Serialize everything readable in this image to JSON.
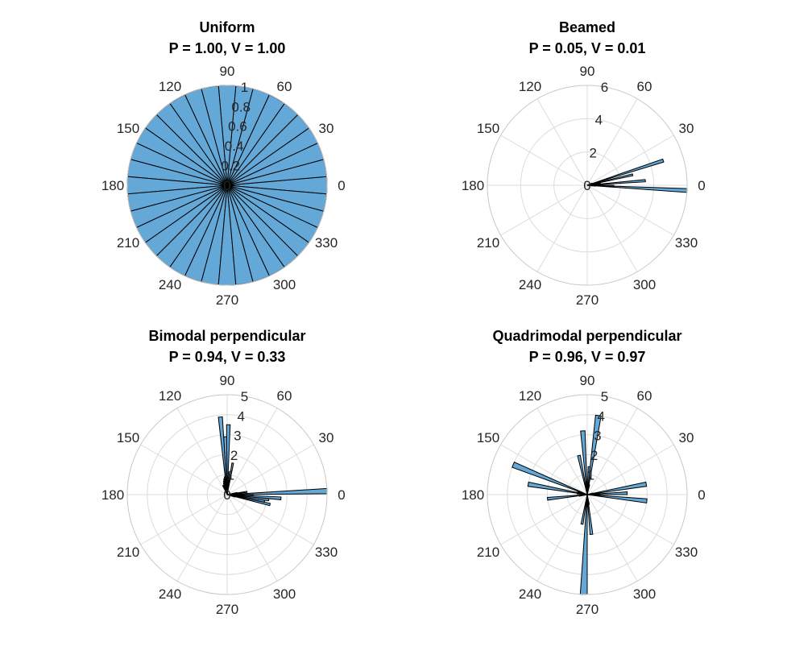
{
  "figure": {
    "panels": [
      {
        "title_line1": "Uniform",
        "title_line2": "P = 1.00, V = 1.00"
      },
      {
        "title_line1": "Beamed",
        "title_line2": "P = 0.05, V = 0.01"
      },
      {
        "title_line1": "Bimodal perpendicular",
        "title_line2": "P = 0.94, V = 0.33"
      },
      {
        "title_line1": "Quadrimodal perpendicular",
        "title_line2": "P = 0.96, V = 0.97"
      }
    ]
  },
  "colors": {
    "bar_fill": "#64a8d8",
    "bar_edge": "#000000",
    "grid": "#dcdcdc",
    "text": "#262626"
  },
  "chart_data": [
    {
      "type": "polar_histogram",
      "title": "Uniform\nP = 1.00, V = 1.00",
      "theta_ticks": [
        "0",
        "30",
        "60",
        "90",
        "120",
        "150",
        "180",
        "210",
        "240",
        "270",
        "300",
        "330"
      ],
      "r_ticks": [
        "0",
        "0.2",
        "0.4",
        "0.6",
        "0.8",
        "1"
      ],
      "rlim": [
        0,
        1
      ],
      "grid": true,
      "bins": "uniform",
      "bars": [
        {
          "theta": 0,
          "r": 1
        },
        {
          "theta": 10,
          "r": 1
        },
        {
          "theta": 20,
          "r": 1
        },
        {
          "theta": 30,
          "r": 1
        },
        {
          "theta": 40,
          "r": 1
        },
        {
          "theta": 50,
          "r": 1
        },
        {
          "theta": 60,
          "r": 1
        },
        {
          "theta": 70,
          "r": 1
        },
        {
          "theta": 80,
          "r": 1
        },
        {
          "theta": 90,
          "r": 1
        },
        {
          "theta": 100,
          "r": 1
        },
        {
          "theta": 110,
          "r": 1
        },
        {
          "theta": 120,
          "r": 1
        },
        {
          "theta": 130,
          "r": 1
        },
        {
          "theta": 140,
          "r": 1
        },
        {
          "theta": 150,
          "r": 1
        },
        {
          "theta": 160,
          "r": 1
        },
        {
          "theta": 170,
          "r": 1
        },
        {
          "theta": 180,
          "r": 1
        },
        {
          "theta": 190,
          "r": 1
        },
        {
          "theta": 200,
          "r": 1
        },
        {
          "theta": 210,
          "r": 1
        },
        {
          "theta": 220,
          "r": 1
        },
        {
          "theta": 230,
          "r": 1
        },
        {
          "theta": 240,
          "r": 1
        },
        {
          "theta": 250,
          "r": 1
        },
        {
          "theta": 260,
          "r": 1
        },
        {
          "theta": 270,
          "r": 1
        },
        {
          "theta": 280,
          "r": 1
        },
        {
          "theta": 290,
          "r": 1
        },
        {
          "theta": 300,
          "r": 1
        },
        {
          "theta": 310,
          "r": 1
        },
        {
          "theta": 320,
          "r": 1
        },
        {
          "theta": 330,
          "r": 1
        },
        {
          "theta": 340,
          "r": 1
        },
        {
          "theta": 350,
          "r": 1
        }
      ]
    },
    {
      "type": "polar_histogram",
      "title": "Beamed\nP = 0.05, V = 0.01",
      "theta_ticks": [
        "0",
        "30",
        "60",
        "90",
        "120",
        "150",
        "180",
        "210",
        "240",
        "270",
        "300",
        "330"
      ],
      "r_ticks": [
        "0",
        "2",
        "4",
        "6"
      ],
      "rlim": [
        0,
        6
      ],
      "grid": true,
      "bars": [
        {
          "theta": -3,
          "r": 6
        },
        {
          "theta": -1,
          "r": 1.6
        },
        {
          "theta": 0.5,
          "r": 0.7
        },
        {
          "theta": 1.5,
          "r": 0.5
        },
        {
          "theta": 2.5,
          "r": 0.45
        },
        {
          "theta": 3.5,
          "r": 0.5
        },
        {
          "theta": 4.5,
          "r": 3.5
        },
        {
          "theta": 5.5,
          "r": 0.8
        },
        {
          "theta": 6.5,
          "r": 0.4
        },
        {
          "theta": 7.5,
          "r": 0.4
        },
        {
          "theta": 8.5,
          "r": 0.35
        },
        {
          "theta": 9.5,
          "r": 0.3
        },
        {
          "theta": 11,
          "r": 0.8
        },
        {
          "theta": 13,
          "r": 2.8
        },
        {
          "theta": -5,
          "r": 0.5
        },
        {
          "theta": -7,
          "r": 0.3
        },
        {
          "theta": 16,
          "r": 0.4
        },
        {
          "theta": 18,
          "r": 4.8
        },
        {
          "theta": 20,
          "r": 0.3
        },
        {
          "theta": 23,
          "r": 0.3
        }
      ]
    },
    {
      "type": "polar_histogram",
      "title": "Bimodal perpendicular\nP = 0.94, V = 0.33",
      "theta_ticks": [
        "0",
        "30",
        "60",
        "90",
        "120",
        "150",
        "180",
        "210",
        "240",
        "270",
        "300",
        "330"
      ],
      "r_ticks": [
        "0",
        "1",
        "2",
        "3",
        "4",
        "5"
      ],
      "rlim": [
        0,
        5
      ],
      "grid": true,
      "bars": [
        {
          "theta": -13,
          "r": 2.2
        },
        {
          "theta": -10,
          "r": 1.9
        },
        {
          "theta": -7,
          "r": 2.1
        },
        {
          "theta": -4,
          "r": 2.7
        },
        {
          "theta": -1,
          "r": 1.3
        },
        {
          "theta": 2,
          "r": 5
        },
        {
          "theta": 5,
          "r": 0.7
        },
        {
          "theta": 8,
          "r": 1.0
        },
        {
          "theta": 11,
          "r": 0.5
        },
        {
          "theta": -16,
          "r": 0.4
        },
        {
          "theta": 80,
          "r": 1.6
        },
        {
          "theta": 83,
          "r": 0.7
        },
        {
          "theta": 86,
          "r": 1.1
        },
        {
          "theta": 89,
          "r": 3.5
        },
        {
          "theta": 92,
          "r": 2.9
        },
        {
          "theta": 95,
          "r": 3.9
        },
        {
          "theta": 98,
          "r": 0.9
        },
        {
          "theta": 101,
          "r": 0.8
        },
        {
          "theta": 104,
          "r": 0.7
        },
        {
          "theta": 107,
          "r": 0.6
        },
        {
          "theta": 110,
          "r": 0.5
        },
        {
          "theta": 115,
          "r": 0.5
        }
      ]
    },
    {
      "type": "polar_histogram",
      "title": "Quadrimodal perpendicular\nP = 0.96, V = 0.97",
      "theta_ticks": [
        "0",
        "30",
        "60",
        "90",
        "120",
        "150",
        "180",
        "210",
        "240",
        "270",
        "300",
        "330"
      ],
      "r_ticks": [
        "1",
        "2",
        "3",
        "4",
        "5"
      ],
      "rlim": [
        0,
        5
      ],
      "grid": true,
      "bars": [
        {
          "theta": -6,
          "r": 3.0
        },
        {
          "theta": -2,
          "r": 0.6
        },
        {
          "theta": 2,
          "r": 2.0
        },
        {
          "theta": 6,
          "r": 0.6
        },
        {
          "theta": 10,
          "r": 3.0
        },
        {
          "theta": 14,
          "r": 0.3
        },
        {
          "theta": 78,
          "r": 0.5
        },
        {
          "theta": 82,
          "r": 4.0
        },
        {
          "theta": 86,
          "r": 1.4
        },
        {
          "theta": 90,
          "r": 0.5
        },
        {
          "theta": 94,
          "r": 3.2
        },
        {
          "theta": 98,
          "r": 0.4
        },
        {
          "theta": 102,
          "r": 2.0
        },
        {
          "theta": 158,
          "r": 4.0
        },
        {
          "theta": 162,
          "r": 0.5
        },
        {
          "theta": 166,
          "r": 0.4
        },
        {
          "theta": 170,
          "r": 3.0
        },
        {
          "theta": 174,
          "r": 0.5
        },
        {
          "theta": 186,
          "r": 2.0
        },
        {
          "theta": 190,
          "r": 0.4
        },
        {
          "theta": 260,
          "r": 1.5
        },
        {
          "theta": 264,
          "r": 0.5
        },
        {
          "theta": 268,
          "r": 5.0
        },
        {
          "theta": 272,
          "r": 0.5
        },
        {
          "theta": 276,
          "r": 2.0
        },
        {
          "theta": 280,
          "r": 0.5
        }
      ]
    }
  ]
}
